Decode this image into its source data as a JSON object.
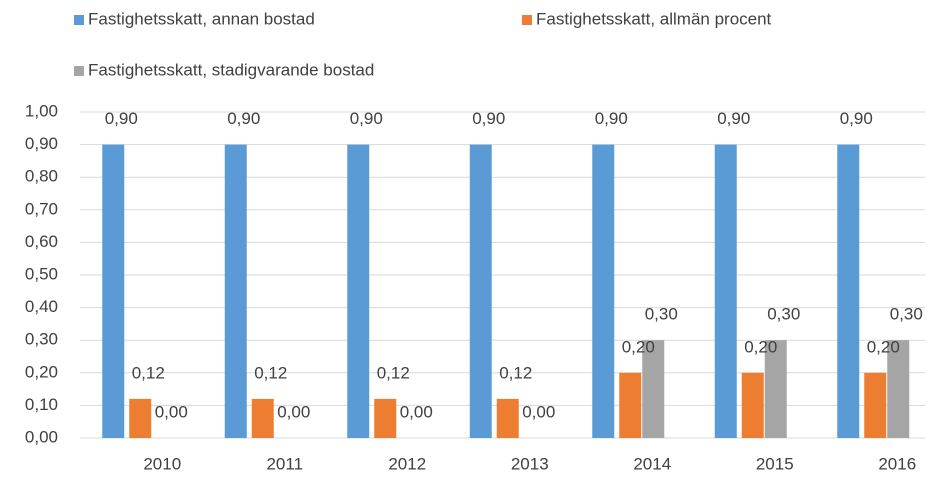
{
  "chart_data": {
    "type": "bar",
    "categories": [
      "2010",
      "2011",
      "2012",
      "2013",
      "2014",
      "2015",
      "2016"
    ],
    "series": [
      {
        "name": "Fastighetsskatt, annan bostad",
        "color": "#5b9bd5",
        "values": [
          0.9,
          0.9,
          0.9,
          0.9,
          0.9,
          0.9,
          0.9
        ],
        "value_labels": [
          "0,90",
          "0,90",
          "0,90",
          "0,90",
          "0,90",
          "0,90",
          "0,90"
        ]
      },
      {
        "name": "Fastighetsskatt, allmän procent",
        "color": "#ed7d31",
        "values": [
          0.12,
          0.12,
          0.12,
          0.12,
          0.2,
          0.2,
          0.2
        ],
        "value_labels": [
          "0,12",
          "0,12",
          "0,12",
          "0,12",
          "0,20",
          "0,20",
          "0,20"
        ]
      },
      {
        "name": "Fastighetsskatt, stadigvarande bostad",
        "color": "#a5a5a5",
        "values": [
          0,
          0,
          0,
          0,
          0.3,
          0.3,
          0.3
        ],
        "value_labels": [
          "0,00",
          "0,00",
          "0,00",
          "0,00",
          "0,30",
          "0,30",
          "0,30"
        ]
      }
    ],
    "ylim": [
      0,
      1
    ],
    "yticks": [
      {
        "value": 0,
        "label": "0,00"
      },
      {
        "value": 0.1,
        "label": "0,10"
      },
      {
        "value": 0.2,
        "label": "0,20"
      },
      {
        "value": 0.3,
        "label": "0,30"
      },
      {
        "value": 0.4,
        "label": "0,40"
      },
      {
        "value": 0.5,
        "label": "0,50"
      },
      {
        "value": 0.6,
        "label": "0,60"
      },
      {
        "value": 0.7,
        "label": "0,70"
      },
      {
        "value": 0.8,
        "label": "0,80"
      },
      {
        "value": 0.9,
        "label": "0,90"
      },
      {
        "value": 1,
        "label": "1,00"
      }
    ],
    "grid": true,
    "legend": "top"
  }
}
